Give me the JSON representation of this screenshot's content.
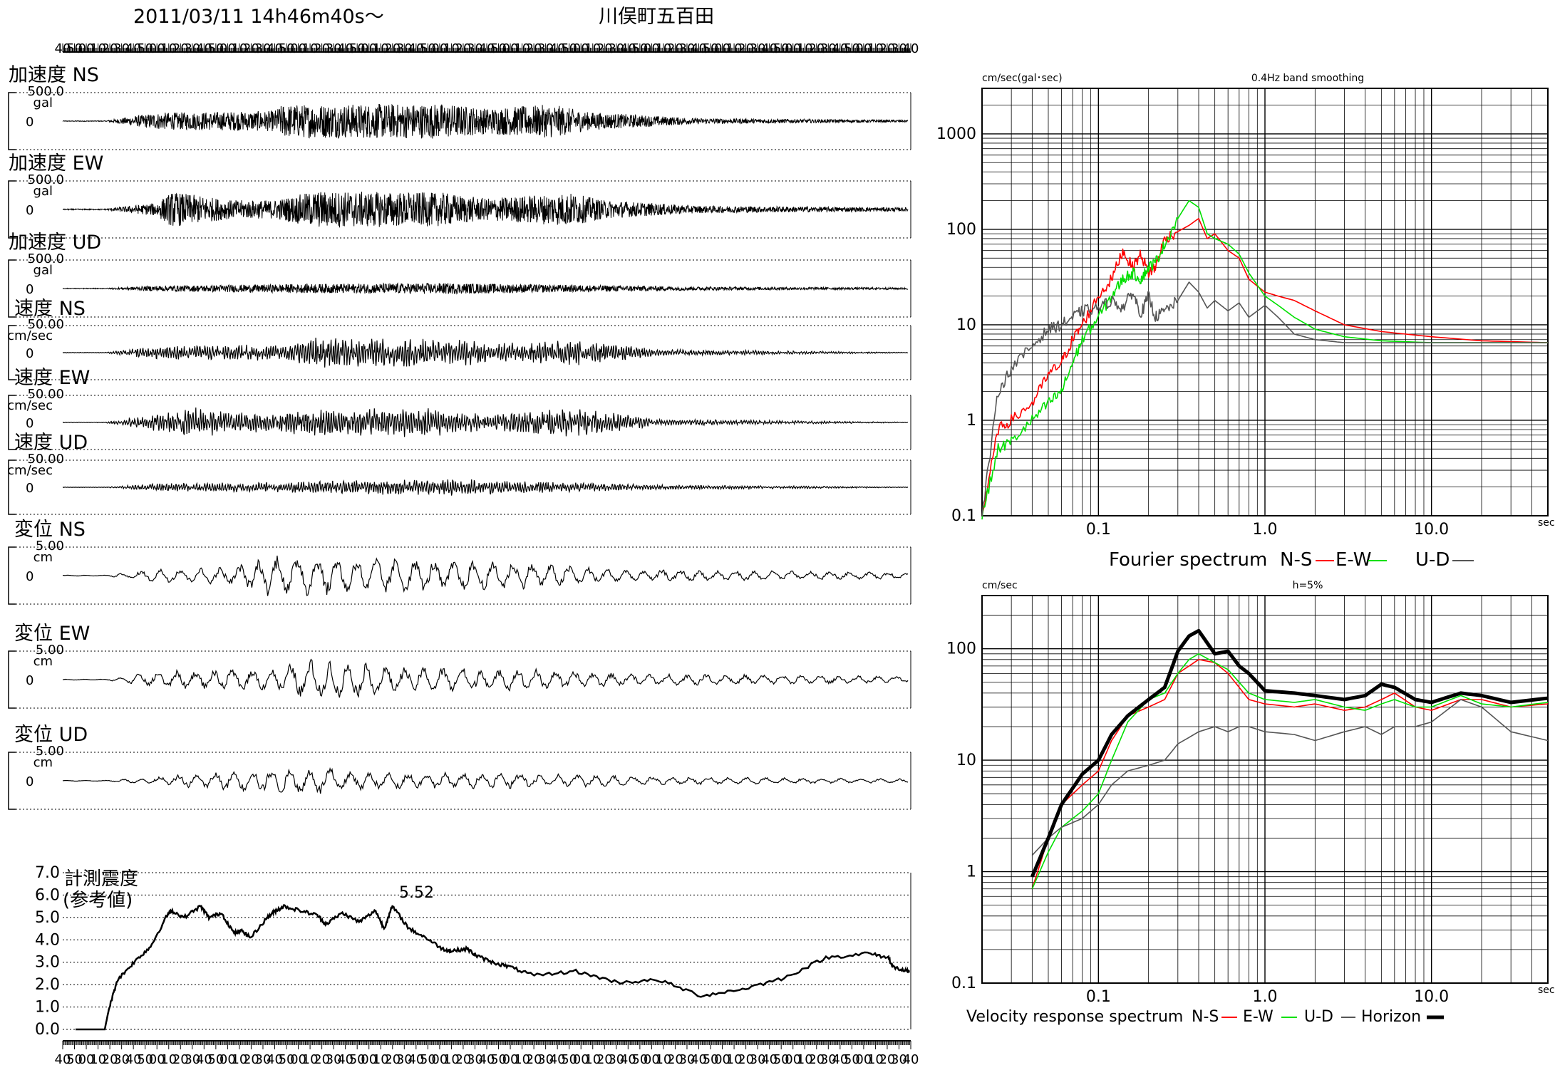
{
  "header": {
    "datetime": "2011/03/11  14h46m40s～",
    "station": "川俣町五百田"
  },
  "time_ticks": [
    "40",
    "50",
    "00",
    "10",
    "20",
    "30",
    "40",
    "50",
    "00",
    "10",
    "20",
    "30",
    "40",
    "50",
    "00",
    "10",
    "20",
    "30",
    "40",
    "50",
    "00",
    "10",
    "20",
    "30",
    "40",
    "50",
    "00",
    "10",
    "20",
    "30",
    "40",
    "50",
    "00",
    "10",
    "20",
    "30",
    "40",
    "50",
    "00",
    "10",
    "20",
    "30",
    "40",
    "50",
    "00",
    "10",
    "20",
    "30",
    "40",
    "50",
    "00",
    "10",
    "20",
    "30",
    "40",
    "50",
    "00",
    "10",
    "20",
    "30",
    "40",
    "50",
    "00",
    "10",
    "20",
    "30",
    "40",
    "50",
    "00",
    "10",
    "20",
    "30",
    "40"
  ],
  "chart_data": [
    {
      "type": "line",
      "title": "加速度 NS",
      "scale_label": "500.0",
      "unit": "gal",
      "zero_label": "0",
      "peak_times": [
        0.27,
        0.53,
        0.61
      ]
    },
    {
      "type": "line",
      "title": "加速度 EW",
      "scale_label": "500.0",
      "unit": "gal",
      "zero_label": "0",
      "peak_times": [
        0.17,
        0.38,
        0.5
      ]
    },
    {
      "type": "line",
      "title": "加速度 UD",
      "scale_label": "500.0",
      "unit": "gal",
      "zero_label": "0"
    },
    {
      "type": "line",
      "title": "速度 NS",
      "scale_label": "50.00",
      "unit": "cm/sec",
      "zero_label": "0"
    },
    {
      "type": "line",
      "title": "速度 EW",
      "scale_label": "50.00",
      "unit": "cm/sec",
      "zero_label": "0"
    },
    {
      "type": "line",
      "title": "速度 UD",
      "scale_label": "50.00",
      "unit": "cm/sec",
      "zero_label": "0"
    },
    {
      "type": "line",
      "title": "変位 NS",
      "scale_label": "5.00",
      "unit": "cm",
      "zero_label": "0"
    },
    {
      "type": "line",
      "title": "変位 EW",
      "scale_label": "5.00",
      "unit": "cm",
      "zero_label": "0"
    },
    {
      "type": "line",
      "title": "変位 UD",
      "scale_label": "5.00",
      "unit": "cm",
      "zero_label": "0"
    },
    {
      "type": "line",
      "title": "計測震度",
      "subtitle": "(参考値)",
      "peak_label": "5.52",
      "yticks": [
        "0.0",
        "1.0",
        "2.0",
        "3.0",
        "4.0",
        "5.0",
        "6.0",
        "7.0"
      ],
      "ylim": [
        0,
        7
      ],
      "x": [
        0.0,
        0.035,
        0.04,
        0.05,
        0.07,
        0.09,
        0.11,
        0.115,
        0.13,
        0.15,
        0.16,
        0.175,
        0.19,
        0.2,
        0.21,
        0.23,
        0.24,
        0.25,
        0.27,
        0.29,
        0.3,
        0.32,
        0.34,
        0.36,
        0.37,
        0.38,
        0.4,
        0.42,
        0.44,
        0.45,
        0.47,
        0.48,
        0.5,
        0.52,
        0.55,
        0.6,
        0.65,
        0.7,
        0.75,
        0.8,
        0.85,
        0.9,
        0.95,
        0.975,
        0.98,
        0.995,
        1.0
      ],
      "y": [
        0.0,
        0.0,
        0.9,
        2.2,
        3.0,
        3.7,
        5.1,
        5.3,
        5.0,
        5.5,
        5.0,
        5.2,
        4.3,
        4.4,
        4.1,
        5.0,
        5.3,
        5.5,
        5.3,
        5.1,
        4.7,
        5.2,
        4.8,
        5.3,
        4.5,
        5.5,
        4.5,
        4.1,
        3.6,
        3.5,
        3.6,
        3.3,
        3.0,
        2.8,
        2.4,
        2.6,
        2.1,
        2.2,
        1.5,
        1.8,
        2.3,
        3.2,
        3.4,
        3.2,
        2.8,
        2.6,
        2.6
      ]
    },
    {
      "type": "line",
      "title": "Fourier spectrum",
      "subtitle": "0.4Hz band smoothing",
      "ylabel": "cm/sec(gal･sec)",
      "xlabel": "sec",
      "x_scale": "log",
      "y_scale": "log",
      "xlim": [
        0.02,
        50
      ],
      "ylim": [
        0.1,
        3000
      ],
      "xticks": [
        "0.1",
        "1.0",
        "10.0"
      ],
      "yticks": [
        "0.1",
        "1",
        "10",
        "100",
        "1000"
      ],
      "series": [
        {
          "name": "N-S",
          "color": "#ff0000",
          "x": [
            0.02,
            0.025,
            0.03,
            0.04,
            0.05,
            0.06,
            0.07,
            0.08,
            0.1,
            0.12,
            0.14,
            0.16,
            0.18,
            0.2,
            0.22,
            0.25,
            0.3,
            0.35,
            0.4,
            0.45,
            0.5,
            0.6,
            0.7,
            0.8,
            1.0,
            1.2,
            1.5,
            2.0,
            3.0,
            5.0,
            10,
            20,
            50
          ],
          "y": [
            0.1,
            0.8,
            1.0,
            1.5,
            3.0,
            4.0,
            7.0,
            10,
            20,
            30,
            60,
            40,
            55,
            35,
            40,
            80,
            95,
            110,
            130,
            80,
            90,
            60,
            50,
            30,
            22,
            20,
            18,
            14,
            10,
            8.5,
            7.5,
            6.8,
            6.5
          ]
        },
        {
          "name": "E-W",
          "color": "#00e000",
          "x": [
            0.02,
            0.025,
            0.03,
            0.04,
            0.05,
            0.06,
            0.07,
            0.08,
            0.1,
            0.12,
            0.14,
            0.16,
            0.18,
            0.2,
            0.22,
            0.25,
            0.3,
            0.35,
            0.4,
            0.45,
            0.5,
            0.6,
            0.7,
            0.8,
            1.0,
            1.2,
            1.5,
            2.0,
            3.0,
            5.0,
            10,
            20,
            50
          ],
          "y": [
            0.1,
            0.5,
            0.6,
            1.0,
            1.5,
            2.0,
            4.0,
            7.0,
            12,
            20,
            30,
            35,
            30,
            40,
            45,
            70,
            130,
            200,
            170,
            90,
            80,
            70,
            55,
            35,
            20,
            16,
            12,
            9,
            7.5,
            6.8,
            6.5,
            6.5,
            6.5
          ]
        },
        {
          "name": "U-D",
          "color": "#555555",
          "x": [
            0.02,
            0.025,
            0.03,
            0.04,
            0.05,
            0.06,
            0.07,
            0.08,
            0.1,
            0.12,
            0.14,
            0.16,
            0.18,
            0.2,
            0.22,
            0.25,
            0.3,
            0.35,
            0.4,
            0.45,
            0.5,
            0.6,
            0.7,
            0.8,
            1.0,
            1.2,
            1.5,
            2.0,
            3.0,
            5.0,
            10,
            20,
            50
          ],
          "y": [
            0.1,
            2.0,
            3.5,
            6.0,
            9.0,
            10,
            12,
            14,
            15,
            18,
            15,
            22,
            13,
            20,
            12,
            14,
            18,
            28,
            22,
            15,
            18,
            14,
            17,
            12,
            16,
            12,
            8.0,
            7.0,
            6.5,
            6.5,
            6.5,
            6.5,
            6.5
          ]
        }
      ]
    },
    {
      "type": "line",
      "title": "Velocity response spectrum",
      "subtitle": "h=5%",
      "ylabel": "cm/sec",
      "xlabel": "sec",
      "x_scale": "log",
      "y_scale": "log",
      "xlim": [
        0.02,
        50
      ],
      "ylim": [
        0.1,
        300
      ],
      "xticks": [
        "0.1",
        "1.0",
        "10.0"
      ],
      "yticks": [
        "0.1",
        "1",
        "10",
        "100"
      ],
      "series": [
        {
          "name": "N-S",
          "color": "#ff0000",
          "x": [
            0.04,
            0.05,
            0.06,
            0.08,
            0.1,
            0.12,
            0.15,
            0.2,
            0.25,
            0.3,
            0.35,
            0.4,
            0.5,
            0.6,
            0.7,
            0.8,
            1.0,
            1.5,
            2.0,
            3.0,
            4.0,
            5.0,
            6.0,
            8.0,
            10,
            15,
            20,
            30,
            50
          ],
          "y": [
            0.7,
            2.0,
            4.0,
            6.0,
            8.0,
            15,
            25,
            30,
            35,
            60,
            70,
            80,
            75,
            60,
            45,
            35,
            32,
            30,
            32,
            28,
            30,
            35,
            40,
            30,
            28,
            35,
            35,
            30,
            32
          ]
        },
        {
          "name": "E-W",
          "color": "#00e000",
          "x": [
            0.04,
            0.05,
            0.06,
            0.08,
            0.1,
            0.12,
            0.15,
            0.2,
            0.25,
            0.3,
            0.35,
            0.4,
            0.5,
            0.6,
            0.7,
            0.8,
            1.0,
            1.5,
            2.0,
            3.0,
            4.0,
            5.0,
            6.0,
            8.0,
            10,
            15,
            20,
            30,
            50
          ],
          "y": [
            0.7,
            1.5,
            2.5,
            3.5,
            5.0,
            10,
            22,
            35,
            40,
            60,
            80,
            90,
            75,
            65,
            50,
            40,
            35,
            33,
            35,
            30,
            28,
            32,
            35,
            30,
            30,
            38,
            32,
            30,
            33
          ]
        },
        {
          "name": "U-D",
          "color": "#555555",
          "x": [
            0.04,
            0.05,
            0.06,
            0.08,
            0.1,
            0.12,
            0.15,
            0.2,
            0.25,
            0.3,
            0.35,
            0.4,
            0.5,
            0.6,
            0.7,
            0.8,
            1.0,
            1.5,
            2.0,
            3.0,
            4.0,
            5.0,
            6.0,
            8.0,
            10,
            15,
            20,
            30,
            50
          ],
          "y": [
            1.4,
            2.0,
            2.5,
            3.0,
            4.0,
            6.0,
            8.0,
            9.0,
            10,
            14,
            16,
            18,
            20,
            18,
            20,
            20,
            18,
            17,
            15,
            18,
            20,
            17,
            20,
            20,
            22,
            35,
            30,
            18,
            15
          ]
        },
        {
          "name": "Horizon",
          "color": "#000000",
          "x": [
            0.04,
            0.05,
            0.06,
            0.08,
            0.1,
            0.12,
            0.15,
            0.2,
            0.25,
            0.3,
            0.35,
            0.4,
            0.5,
            0.6,
            0.7,
            0.8,
            1.0,
            1.5,
            2.0,
            3.0,
            4.0,
            5.0,
            6.0,
            8.0,
            10,
            15,
            20,
            30,
            50
          ],
          "y": [
            0.9,
            2.0,
            4.0,
            7.5,
            10,
            17,
            25,
            35,
            45,
            95,
            130,
            145,
            90,
            95,
            70,
            60,
            42,
            40,
            38,
            35,
            38,
            48,
            45,
            35,
            33,
            40,
            38,
            33,
            36
          ]
        }
      ]
    }
  ],
  "legends": {
    "fourier": {
      "title": "Fourier spectrum",
      "items": [
        "N-S",
        "E-W",
        "U-D"
      ]
    },
    "velocity": {
      "title": "Velocity response spectrum",
      "items": [
        "N-S",
        "E-W",
        "U-D",
        "Horizon"
      ]
    }
  },
  "colors": {
    "ns": "#ff0000",
    "ew": "#00e000",
    "ud": "#555555",
    "horizon": "#000000"
  }
}
